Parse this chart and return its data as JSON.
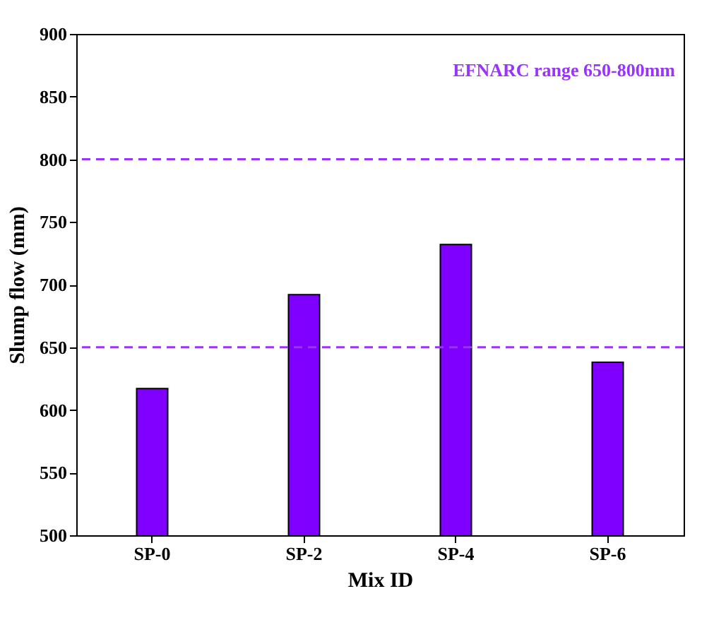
{
  "chart_data": {
    "type": "bar",
    "xlabel": "Mix ID",
    "ylabel": "Slump flow (mm)",
    "categories": [
      "SP-0",
      "SP-2",
      "SP-4",
      "SP-6"
    ],
    "values": [
      617,
      692,
      732,
      638
    ],
    "color": "#8000ff",
    "ylim": [
      500,
      900
    ],
    "yticks": [
      500,
      550,
      600,
      650,
      700,
      750,
      800,
      850,
      900
    ],
    "grid": false,
    "ref_lines": [
      {
        "axis": "y",
        "value": 650,
        "color": "#9933ff",
        "line_style": "dashed"
      },
      {
        "axis": "y",
        "value": 800,
        "color": "#9933ff",
        "line_style": "dashed"
      }
    ],
    "annotations": [
      "EFNARC range 650-800mm"
    ]
  }
}
